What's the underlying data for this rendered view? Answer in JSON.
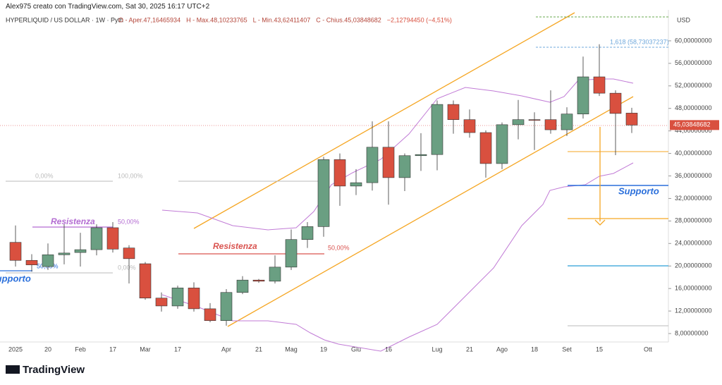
{
  "credit": "Alex975 creato con TradingView.com, Sat 30, 2025 16:17 UTC+2",
  "chart_data": {
    "type": "candlestick",
    "title": "HYPERLIQUID / US DOLLAR · 1W · Pyth",
    "ohlc_labels": [
      "O - Aper.47,16465934",
      "H - Max.48,10233765",
      "L - Min.43,62411407",
      "C - Chius.45,03848682",
      "−2,12794450 (−4,51%)"
    ],
    "currency": "USD",
    "last_price_label": "45,03848682",
    "categories": [
      "2025",
      null,
      "20",
      null,
      "Feb",
      null,
      "17",
      null,
      "Mar",
      null,
      "17",
      null,
      null,
      "Apr",
      null,
      "21",
      null,
      "Mag",
      null,
      "19",
      null,
      "Giu",
      null,
      "16",
      null,
      null,
      "Lug",
      null,
      "21",
      null,
      "Ago",
      null,
      "18",
      null,
      "Set",
      null,
      "15",
      null,
      null,
      "Ott"
    ],
    "open": [
      24.2,
      21.0,
      19.9,
      22.0,
      22.4,
      22.9,
      26.8,
      23.2,
      20.4,
      14.3,
      12.9,
      16.1,
      12.4,
      10.3,
      15.3,
      17.5,
      17.3,
      19.8,
      24.7,
      27.0,
      38.9,
      34.2,
      34.8,
      41.1,
      35.7,
      39.6,
      39.8,
      48.7,
      46.0,
      43.7,
      38.2,
      45.1,
      46.0,
      46.0,
      44.2,
      47.0,
      53.6,
      50.7,
      47.16465934,
      null
    ],
    "high": [
      27.2,
      22.1,
      24.0,
      27.4,
      25.9,
      27.4,
      27.8,
      23.7,
      20.7,
      15.3,
      16.5,
      17.1,
      13.4,
      15.9,
      18.2,
      17.7,
      21.9,
      26.5,
      27.8,
      39.4,
      40.0,
      37.2,
      45.7,
      45.7,
      40.0,
      43.6,
      49.4,
      49.4,
      47.8,
      44.1,
      45.5,
      49.5,
      47.3,
      51.2,
      48.2,
      57.2,
      59.4,
      51.2,
      48.10233765,
      null
    ],
    "low": [
      19.9,
      19.0,
      19.3,
      20.3,
      19.9,
      21.9,
      22.4,
      16.9,
      14.0,
      11.9,
      12.4,
      11.9,
      10.0,
      9.4,
      15.0,
      17.0,
      16.9,
      19.3,
      23.2,
      25.2,
      30.7,
      32.6,
      33.4,
      30.9,
      33.3,
      36.9,
      37.0,
      43.5,
      42.8,
      35.7,
      37.2,
      42.5,
      40.6,
      43.5,
      43.1,
      46.2,
      50.2,
      39.7,
      43.62411407,
      null
    ],
    "close": [
      21.0,
      20.2,
      22.0,
      22.3,
      22.9,
      26.8,
      23.0,
      21.3,
      14.3,
      12.9,
      16.1,
      12.4,
      10.3,
      15.3,
      17.5,
      17.3,
      19.8,
      24.7,
      27.0,
      38.9,
      34.2,
      34.8,
      41.1,
      35.7,
      39.6,
      39.8,
      48.7,
      46.0,
      43.7,
      38.2,
      45.1,
      46.0,
      45.9,
      44.2,
      47.0,
      53.6,
      50.7,
      47.1,
      45.03848682,
      null
    ],
    "up_color": "#6a9f82",
    "down_color": "#d9503f",
    "ylim": [
      6.5,
      65.0
    ],
    "yticks": [
      {
        "value": 8,
        "label": "8,00000000"
      },
      {
        "value": 12,
        "label": "12,00000000"
      },
      {
        "value": 16,
        "label": "16,00000000"
      },
      {
        "value": 20,
        "label": "20,00000000"
      },
      {
        "value": 24,
        "label": "24,00000000"
      },
      {
        "value": 28,
        "label": "28,00000000"
      },
      {
        "value": 32,
        "label": "32,00000000"
      },
      {
        "value": 36,
        "label": "36,00000000"
      },
      {
        "value": 40,
        "label": "40,00000000"
      },
      {
        "value": 44,
        "label": "44,00000000"
      },
      {
        "value": 48,
        "label": "48,00000000"
      },
      {
        "value": 52,
        "label": "52,00000000"
      },
      {
        "value": 56,
        "label": "56,00000000"
      },
      {
        "value": 60,
        "label": "60,00000000"
      }
    ],
    "annotations": [
      "Resistenza",
      "Resistenza",
      "Supporto",
      "Supporto",
      "50,00%",
      "0,00%",
      "100,00%",
      "50,00%",
      "0,00%",
      "50,00%",
      "1,618 (58,73037237)"
    ]
  },
  "brand": "TradingView"
}
